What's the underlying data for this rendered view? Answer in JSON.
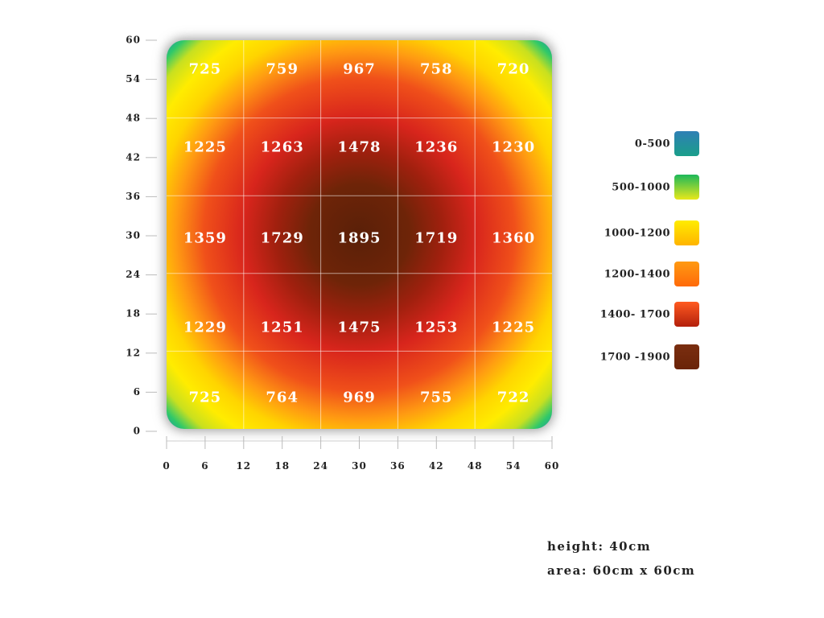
{
  "chart_data": {
    "type": "heatmap",
    "x_ticks": [
      "0",
      "6",
      "12",
      "18",
      "24",
      "30",
      "36",
      "42",
      "48",
      "54",
      "60"
    ],
    "y_ticks": [
      "0",
      "6",
      "12",
      "18",
      "24",
      "30",
      "36",
      "42",
      "48",
      "54",
      "60"
    ],
    "xlim": [
      0,
      60
    ],
    "ylim": [
      0,
      60
    ],
    "grid": true,
    "grid_values": [
      [
        725,
        759,
        967,
        758,
        720
      ],
      [
        1225,
        1263,
        1478,
        1236,
        1230
      ],
      [
        1359,
        1729,
        1895,
        1719,
        1360
      ],
      [
        1229,
        1251,
        1475,
        1253,
        1225
      ],
      [
        725,
        764,
        969,
        755,
        722
      ]
    ],
    "legend": [
      {
        "label": "0-500",
        "color_top": "#2f7fb5",
        "color_bottom": "#1a9e8a"
      },
      {
        "label": "500-1000",
        "color_top": "#1db85a",
        "color_bottom": "#e8e81a"
      },
      {
        "label": "1000-1200",
        "color_top": "#ffec00",
        "color_bottom": "#ffb400"
      },
      {
        "label": "1200-1400",
        "color_top": "#ff9a12",
        "color_bottom": "#ff6a0a"
      },
      {
        "label": "1400- 1700",
        "color_top": "#ff5a20",
        "color_bottom": "#b3200c"
      },
      {
        "label": "1700 -1900",
        "color_top": "#7a2e10",
        "color_bottom": "#6a2308"
      }
    ],
    "legend_position": "right"
  },
  "info": {
    "height_text": "height: 40cm",
    "area_text": "area: 60cm x 60cm"
  }
}
